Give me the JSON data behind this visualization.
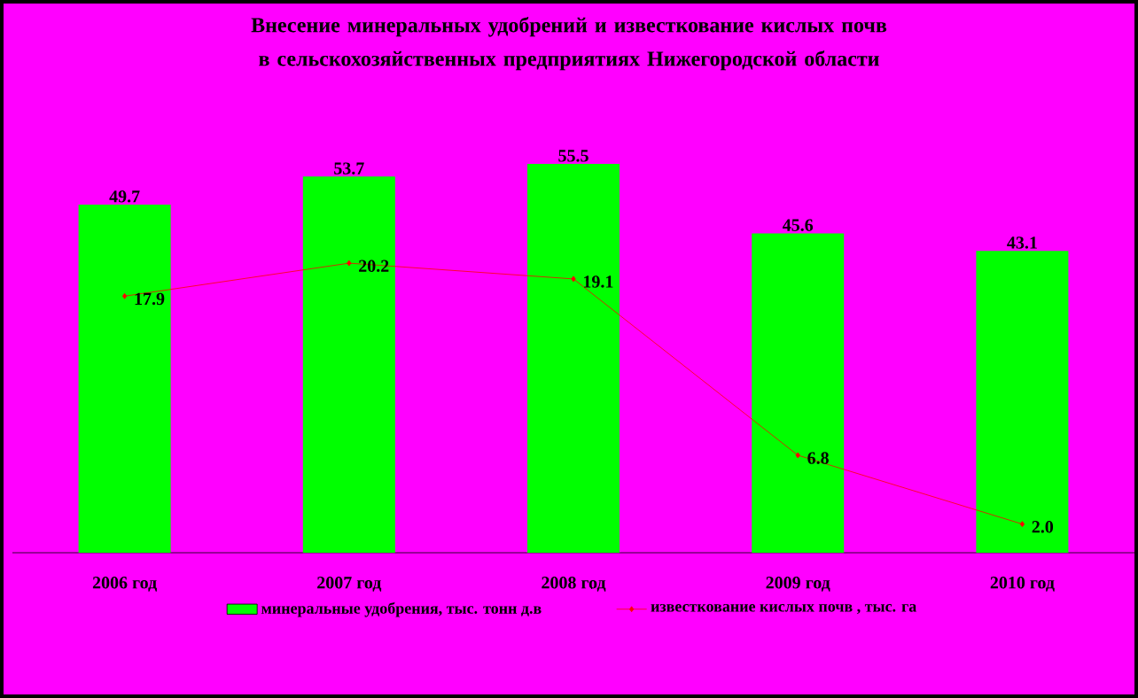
{
  "chart_data": {
    "type": "bar",
    "title": "Внесение минеральных удобрений и известкование кислых почв в сельскохозяйственных предприятиях Нижегородской области",
    "categories": [
      "2006 год",
      "2007 год",
      "2008 год",
      "2009 год",
      "2010 год"
    ],
    "series": [
      {
        "name": "минеральные удобрения, тыс. тонн д.в",
        "color": "#00ff00",
        "values": [
          49.7,
          53.7,
          55.5,
          45.6,
          43.1
        ],
        "value_labels": [
          "49.7",
          "53.7",
          "55.5",
          "45.6",
          "43.1"
        ]
      },
      {
        "name": "известкование кислых почв , тыс. га",
        "type": "line",
        "axis": "y2",
        "color": "#ff0000",
        "values": [
          17.9,
          20.2,
          19.1,
          6.8,
          2.0
        ],
        "value_labels": [
          "17.9",
          "20.2",
          "19.1",
          "6.8",
          "2.0"
        ]
      }
    ],
    "tick_labels": "x",
    "legend": "bottom",
    "marker": "diamond"
  }
}
